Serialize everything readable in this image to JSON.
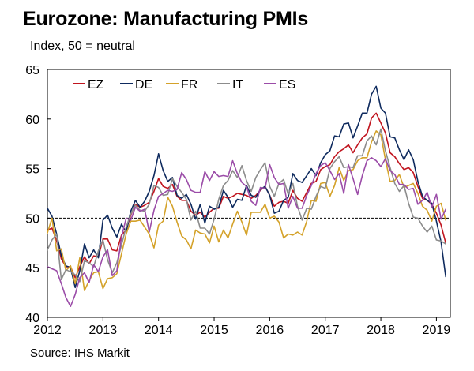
{
  "title": "Eurozone: Manufacturing PMIs",
  "subtitle": "Index, 50 = neutral",
  "source": "Source: IHS Markit",
  "chart_data": {
    "type": "line",
    "title": "Eurozone: Manufacturing PMIs",
    "ylabel": "Index, 50 = neutral",
    "xlim": [
      2012,
      2019.25
    ],
    "ylim": [
      40,
      65
    ],
    "yticks": [
      40,
      45,
      50,
      55,
      60,
      65
    ],
    "xticks": [
      "2012",
      "2013",
      "2014",
      "2015",
      "2016",
      "2017",
      "2018",
      "2019"
    ],
    "reference_line": {
      "y": 50,
      "style": "dashed"
    },
    "legend_placement": "top",
    "grid": false,
    "x": [
      2012.0,
      2012.083,
      2012.167,
      2012.25,
      2012.333,
      2012.417,
      2012.5,
      2012.583,
      2012.667,
      2012.75,
      2012.833,
      2012.917,
      2013.0,
      2013.083,
      2013.167,
      2013.25,
      2013.333,
      2013.417,
      2013.5,
      2013.583,
      2013.667,
      2013.75,
      2013.833,
      2013.917,
      2014.0,
      2014.083,
      2014.167,
      2014.25,
      2014.333,
      2014.417,
      2014.5,
      2014.583,
      2014.667,
      2014.75,
      2014.833,
      2014.917,
      2015.0,
      2015.083,
      2015.167,
      2015.25,
      2015.333,
      2015.417,
      2015.5,
      2015.583,
      2015.667,
      2015.75,
      2015.833,
      2015.917,
      2016.0,
      2016.083,
      2016.167,
      2016.25,
      2016.333,
      2016.417,
      2016.5,
      2016.583,
      2016.667,
      2016.75,
      2016.833,
      2016.917,
      2017.0,
      2017.083,
      2017.167,
      2017.25,
      2017.333,
      2017.417,
      2017.5,
      2017.583,
      2017.667,
      2017.75,
      2017.833,
      2017.917,
      2018.0,
      2018.083,
      2018.167,
      2018.25,
      2018.333,
      2018.417,
      2018.5,
      2018.583,
      2018.667,
      2018.75,
      2018.833,
      2018.917,
      2019.0,
      2019.083,
      2019.167
    ],
    "series": [
      {
        "name": "EZ",
        "color": "#c0141e",
        "values": [
          48.8,
          49.0,
          47.7,
          45.9,
          45.1,
          45.1,
          44.0,
          45.1,
          46.1,
          45.4,
          46.2,
          46.1,
          47.9,
          47.9,
          46.8,
          46.7,
          48.3,
          48.8,
          50.3,
          51.4,
          51.1,
          51.3,
          51.6,
          52.7,
          54.0,
          53.2,
          53.0,
          53.4,
          52.2,
          51.8,
          51.8,
          50.7,
          50.3,
          50.6,
          50.1,
          50.6,
          51.0,
          51.0,
          52.2,
          52.0,
          52.2,
          52.5,
          52.4,
          52.3,
          52.0,
          52.3,
          52.8,
          53.2,
          52.3,
          51.2,
          51.6,
          51.7,
          51.5,
          52.8,
          52.0,
          51.7,
          52.6,
          53.5,
          53.7,
          54.9,
          55.2,
          55.4,
          56.2,
          56.7,
          57.0,
          57.4,
          56.6,
          57.4,
          58.1,
          58.5,
          60.1,
          60.6,
          59.6,
          58.6,
          56.6,
          56.2,
          55.5,
          54.9,
          55.1,
          54.6,
          53.2,
          52.0,
          51.8,
          51.4,
          50.5,
          49.3,
          47.5
        ]
      },
      {
        "name": "DE",
        "color": "#0e2a5e",
        "values": [
          51.0,
          50.2,
          48.4,
          46.2,
          45.2,
          45.0,
          43.0,
          44.7,
          47.4,
          46.0,
          46.8,
          46.0,
          49.8,
          50.3,
          49.0,
          48.1,
          49.4,
          48.6,
          50.7,
          51.8,
          51.1,
          51.7,
          52.7,
          54.3,
          56.5,
          54.8,
          53.7,
          54.1,
          52.3,
          52.0,
          52.4,
          51.4,
          49.9,
          51.4,
          49.5,
          51.2,
          50.9,
          51.1,
          52.8,
          52.1,
          51.1,
          51.9,
          51.8,
          53.3,
          52.3,
          52.1,
          52.9,
          53.2,
          52.3,
          50.5,
          50.7,
          51.8,
          52.1,
          54.5,
          53.8,
          53.6,
          54.3,
          55.0,
          54.3,
          55.6,
          56.4,
          56.8,
          58.3,
          58.2,
          59.5,
          59.6,
          58.1,
          59.3,
          60.6,
          60.6,
          62.5,
          63.3,
          61.1,
          60.6,
          58.2,
          58.1,
          56.9,
          55.9,
          56.9,
          55.9,
          53.7,
          52.2,
          51.8,
          51.5,
          49.7,
          47.6,
          44.1
        ]
      },
      {
        "name": "FR",
        "color": "#d4a22a",
        "values": [
          48.5,
          50.0,
          46.7,
          46.9,
          44.7,
          45.2,
          43.4,
          46.0,
          42.7,
          43.7,
          44.5,
          44.6,
          42.9,
          43.9,
          44.0,
          44.4,
          46.4,
          48.4,
          49.7,
          49.7,
          49.8,
          49.1,
          48.4,
          47.0,
          49.3,
          49.7,
          52.1,
          51.2,
          49.6,
          48.2,
          47.8,
          46.9,
          48.8,
          48.5,
          48.4,
          47.5,
          49.2,
          47.6,
          48.8,
          48.0,
          49.4,
          50.7,
          49.6,
          48.3,
          50.6,
          50.6,
          50.6,
          51.4,
          50.0,
          50.2,
          49.6,
          48.0,
          48.4,
          48.3,
          48.6,
          48.3,
          49.7,
          51.8,
          51.7,
          53.5,
          53.6,
          52.2,
          53.3,
          55.1,
          53.8,
          54.8,
          54.9,
          55.8,
          56.1,
          56.1,
          57.7,
          58.8,
          58.4,
          55.9,
          53.7,
          53.8,
          54.4,
          53.1,
          53.3,
          53.5,
          52.5,
          51.2,
          50.8,
          49.7,
          51.2,
          51.5,
          49.8
        ]
      },
      {
        "name": "IT",
        "color": "#8c8c8c",
        "values": [
          46.8,
          47.8,
          48.4,
          43.8,
          44.8,
          44.6,
          44.3,
          43.6,
          45.7,
          45.5,
          45.1,
          46.7,
          47.8,
          45.8,
          44.5,
          45.5,
          47.3,
          49.1,
          50.4,
          51.3,
          50.8,
          50.7,
          51.4,
          53.3,
          53.1,
          52.3,
          52.4,
          54.0,
          53.2,
          52.6,
          51.9,
          49.8,
          50.7,
          49.0,
          49.0,
          48.4,
          49.9,
          51.9,
          53.3,
          53.8,
          54.8,
          54.1,
          55.3,
          53.8,
          52.7,
          54.1,
          54.9,
          55.6,
          53.2,
          52.2,
          53.5,
          53.9,
          52.4,
          53.5,
          51.2,
          49.8,
          51.0,
          50.9,
          52.2,
          53.2,
          53.0,
          55.0,
          55.7,
          56.2,
          55.1,
          55.2,
          55.1,
          56.3,
          56.3,
          57.8,
          58.3,
          57.4,
          59.0,
          56.8,
          55.1,
          53.5,
          52.7,
          53.3,
          51.5,
          50.1,
          50.0,
          49.2,
          48.6,
          49.2,
          47.8,
          47.7,
          47.4
        ]
      },
      {
        "name": "ES",
        "color": "#9b4ca8",
        "values": [
          45.1,
          44.9,
          44.7,
          43.4,
          42.0,
          41.1,
          42.3,
          44.0,
          44.5,
          43.5,
          45.3,
          44.6,
          46.1,
          46.8,
          44.2,
          44.7,
          48.1,
          50.0,
          49.8,
          51.1,
          50.7,
          50.9,
          48.6,
          50.8,
          52.2,
          52.5,
          52.8,
          52.7,
          52.9,
          54.6,
          53.9,
          52.8,
          52.6,
          52.6,
          54.7,
          53.8,
          54.7,
          54.2,
          54.3,
          54.2,
          55.8,
          54.5,
          53.6,
          53.2,
          51.7,
          51.3,
          53.1,
          53.0,
          55.4,
          54.1,
          53.4,
          53.5,
          51.0,
          52.2,
          51.0,
          51.0,
          52.3,
          53.3,
          54.5,
          55.3,
          55.6,
          54.8,
          53.9,
          54.5,
          52.5,
          55.4,
          54.0,
          52.4,
          54.3,
          55.8,
          56.1,
          55.8,
          55.2,
          56.0,
          54.8,
          54.4,
          53.4,
          53.4,
          52.9,
          53.0,
          51.4,
          51.8,
          52.6,
          51.1,
          52.4,
          49.9,
          50.9
        ]
      }
    ]
  }
}
